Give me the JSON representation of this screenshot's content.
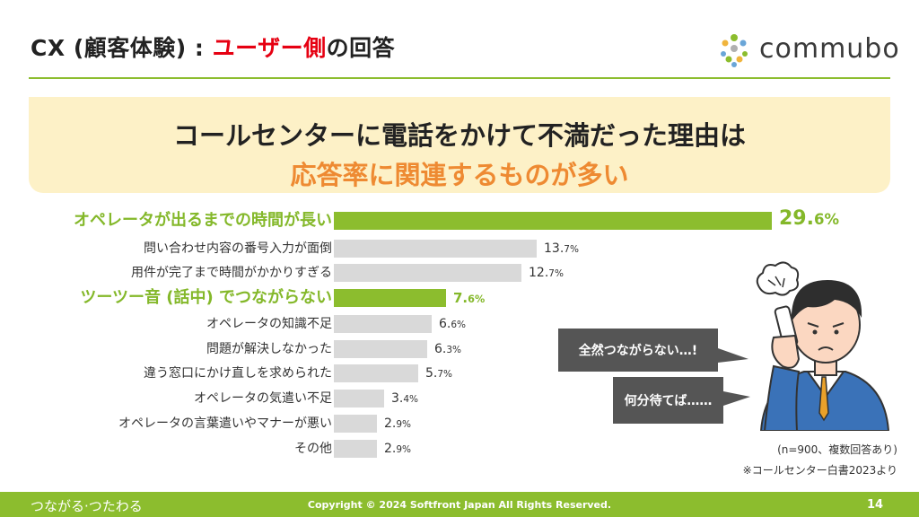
{
  "header": {
    "title_prefix": "CX (顧客体験) : ",
    "title_highlight": "ユーザー側",
    "title_suffix": "の回答",
    "logo_text": "commubo"
  },
  "banner": {
    "line1": "コールセンターに電話をかけて不満だった理由は",
    "line2": "応答率に関連するものが多い"
  },
  "chart_data": {
    "type": "bar",
    "orientation": "horizontal",
    "categories": [
      "オペレータが出るまでの時間が長い",
      "問い合わせ内容の番号入力が面倒",
      "用件が完了まで時間がかかりすぎる",
      "ツーツー音 (話中) でつながらない",
      "オペレータの知識不足",
      "問題が解決しなかった",
      "違う窓口にかけ直しを求められた",
      "オペレータの気遣い不足",
      "オペレータの言葉遣いやマナーが悪い",
      "その他"
    ],
    "values": [
      29.6,
      13.7,
      12.7,
      7.6,
      6.6,
      6.3,
      5.7,
      3.4,
      2.9,
      2.9
    ],
    "value_labels": [
      {
        "num": "29.",
        "dec": "6%"
      },
      {
        "num": "13.",
        "dec": "7%"
      },
      {
        "num": "12.",
        "dec": "7%"
      },
      {
        "num": "7.",
        "dec": "6%"
      },
      {
        "num": "6.",
        "dec": "6%"
      },
      {
        "num": "6.",
        "dec": "3%"
      },
      {
        "num": "5.",
        "dec": "7%"
      },
      {
        "num": "3.",
        "dec": "4%"
      },
      {
        "num": "2.",
        "dec": "9%"
      },
      {
        "num": "2.",
        "dec": "9%"
      }
    ],
    "highlighted_indices": [
      0,
      3
    ],
    "colors": {
      "highlight": "#8cbd2e",
      "default": "#d9d9d9",
      "highlight_text": "#84b82a"
    }
  },
  "bubbles": {
    "bubble1": "全然つながらない…!",
    "bubble2": "何分待てば……"
  },
  "notes": {
    "sample": "(n=900、複数回答あり)",
    "source": "※コールセンター白書2023より"
  },
  "footer": {
    "slogan": "つながる·つたわる",
    "copyright": "Copyright © 2024 Softfront Japan All Rights Reserved.",
    "page": "14"
  },
  "colors": {
    "brand_green": "#8cbd2e",
    "accent_red": "#e60012",
    "accent_orange": "#ee8a32",
    "banner_bg": "#fdf1c7"
  }
}
